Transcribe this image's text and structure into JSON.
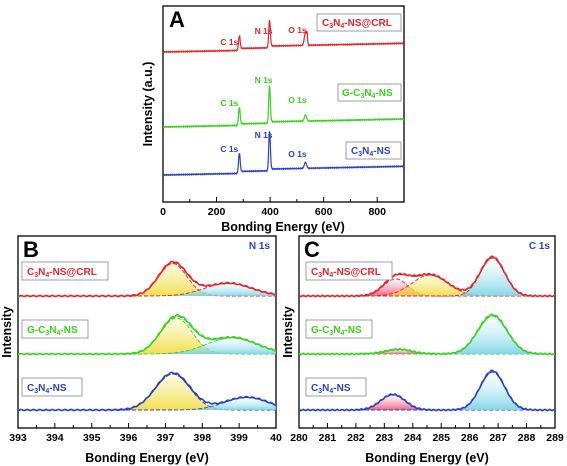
{
  "chart_data": [
    {
      "panel": "A",
      "type": "line",
      "xlabel": "Bonding Energy (eV)",
      "ylabel": "Intensity (a.u.)",
      "xlim": [
        0,
        900
      ],
      "xticks": [
        "0",
        "200",
        "400",
        "600",
        "800"
      ],
      "series": [
        {
          "name": "C3N4-NS@CRL",
          "color": "#e8222b",
          "peaks": [
            {
              "label": "C 1s",
              "x": 285
            },
            {
              "label": "N 1s",
              "x": 398
            },
            {
              "label": "O 1s",
              "x": 532
            }
          ]
        },
        {
          "name": "G-C3N4-NS",
          "color": "#37d21c",
          "peaks": [
            {
              "label": "C 1s",
              "x": 285
            },
            {
              "label": "N 1s",
              "x": 398
            },
            {
              "label": "O 1s",
              "x": 532
            }
          ]
        },
        {
          "name": "C3N4-NS",
          "color": "#2b3fc9",
          "peaks": [
            {
              "label": "C 1s",
              "x": 285
            },
            {
              "label": "N 1s",
              "x": 398
            },
            {
              "label": "O 1s",
              "x": 532
            }
          ]
        }
      ]
    },
    {
      "panel": "B",
      "type": "line",
      "core_level": "N 1s",
      "xlabel": "Bonding Energy (eV)",
      "ylabel": "Intensity",
      "xlim": [
        393,
        400
      ],
      "xticks": [
        "393",
        "394",
        "395",
        "396",
        "397",
        "398",
        "399",
        "40"
      ],
      "series": [
        {
          "name": "C3N4-NS@CRL",
          "color": "#e8222b",
          "components": [
            {
              "center": 397.2,
              "fwhm": 0.9,
              "height": 0.9
            },
            {
              "center": 398.7,
              "fwhm": 1.5,
              "height": 0.35
            }
          ]
        },
        {
          "name": "G-C3N4-NS",
          "color": "#37d21c",
          "components": [
            {
              "center": 397.3,
              "fwhm": 1.0,
              "height": 1.0
            },
            {
              "center": 398.8,
              "fwhm": 1.6,
              "height": 0.45
            }
          ]
        },
        {
          "name": "C3N4-NS",
          "color": "#2b3fc9",
          "components": [
            {
              "center": 397.2,
              "fwhm": 1.1,
              "height": 1.0
            },
            {
              "center": 399.2,
              "fwhm": 1.4,
              "height": 0.35
            }
          ]
        }
      ]
    },
    {
      "panel": "C",
      "type": "line",
      "core_level": "C 1s",
      "xlabel": "Bonding Energy (eV)",
      "ylabel": "Intensity",
      "xlim": [
        280,
        289
      ],
      "xticks": [
        "280",
        "281",
        "282",
        "283",
        "284",
        "285",
        "286",
        "287",
        "288",
        "289"
      ],
      "series": [
        {
          "name": "C3N4-NS@CRL",
          "color": "#e8222b",
          "components": [
            {
              "center": 283.4,
              "fwhm": 1.0,
              "height": 0.45
            },
            {
              "center": 284.6,
              "fwhm": 1.5,
              "height": 0.55
            },
            {
              "center": 286.8,
              "fwhm": 1.0,
              "height": 1.0
            }
          ]
        },
        {
          "name": "G-C3N4-NS",
          "color": "#37d21c",
          "components": [
            {
              "center": 283.5,
              "fwhm": 1.1,
              "height": 0.12
            },
            {
              "center": 286.8,
              "fwhm": 1.2,
              "height": 1.0
            }
          ]
        },
        {
          "name": "C3N4-NS",
          "color": "#2b3fc9",
          "components": [
            {
              "center": 283.3,
              "fwhm": 1.0,
              "height": 0.4
            },
            {
              "center": 286.8,
              "fwhm": 1.0,
              "height": 1.0
            }
          ]
        }
      ]
    }
  ],
  "legend_labels": {
    "crl": {
      "a": "C",
      "s1": "3",
      "b": "N",
      "s2": "4",
      "c": "-NS@CRL"
    },
    "g": {
      "a": "G-C",
      "s1": "3",
      "b": "N",
      "s2": "4",
      "c": "-NS"
    },
    "ns": {
      "a": "C",
      "s1": "3",
      "b": "N",
      "s2": "4",
      "c": "-NS"
    }
  },
  "colors": {
    "red": "#e8222b",
    "green": "#37d21c",
    "blue": "#2b3fc9",
    "yellow_fill": "#f2e05a",
    "cyan_fill": "#7fd6e6",
    "pink_fill": "#f06a8a"
  }
}
